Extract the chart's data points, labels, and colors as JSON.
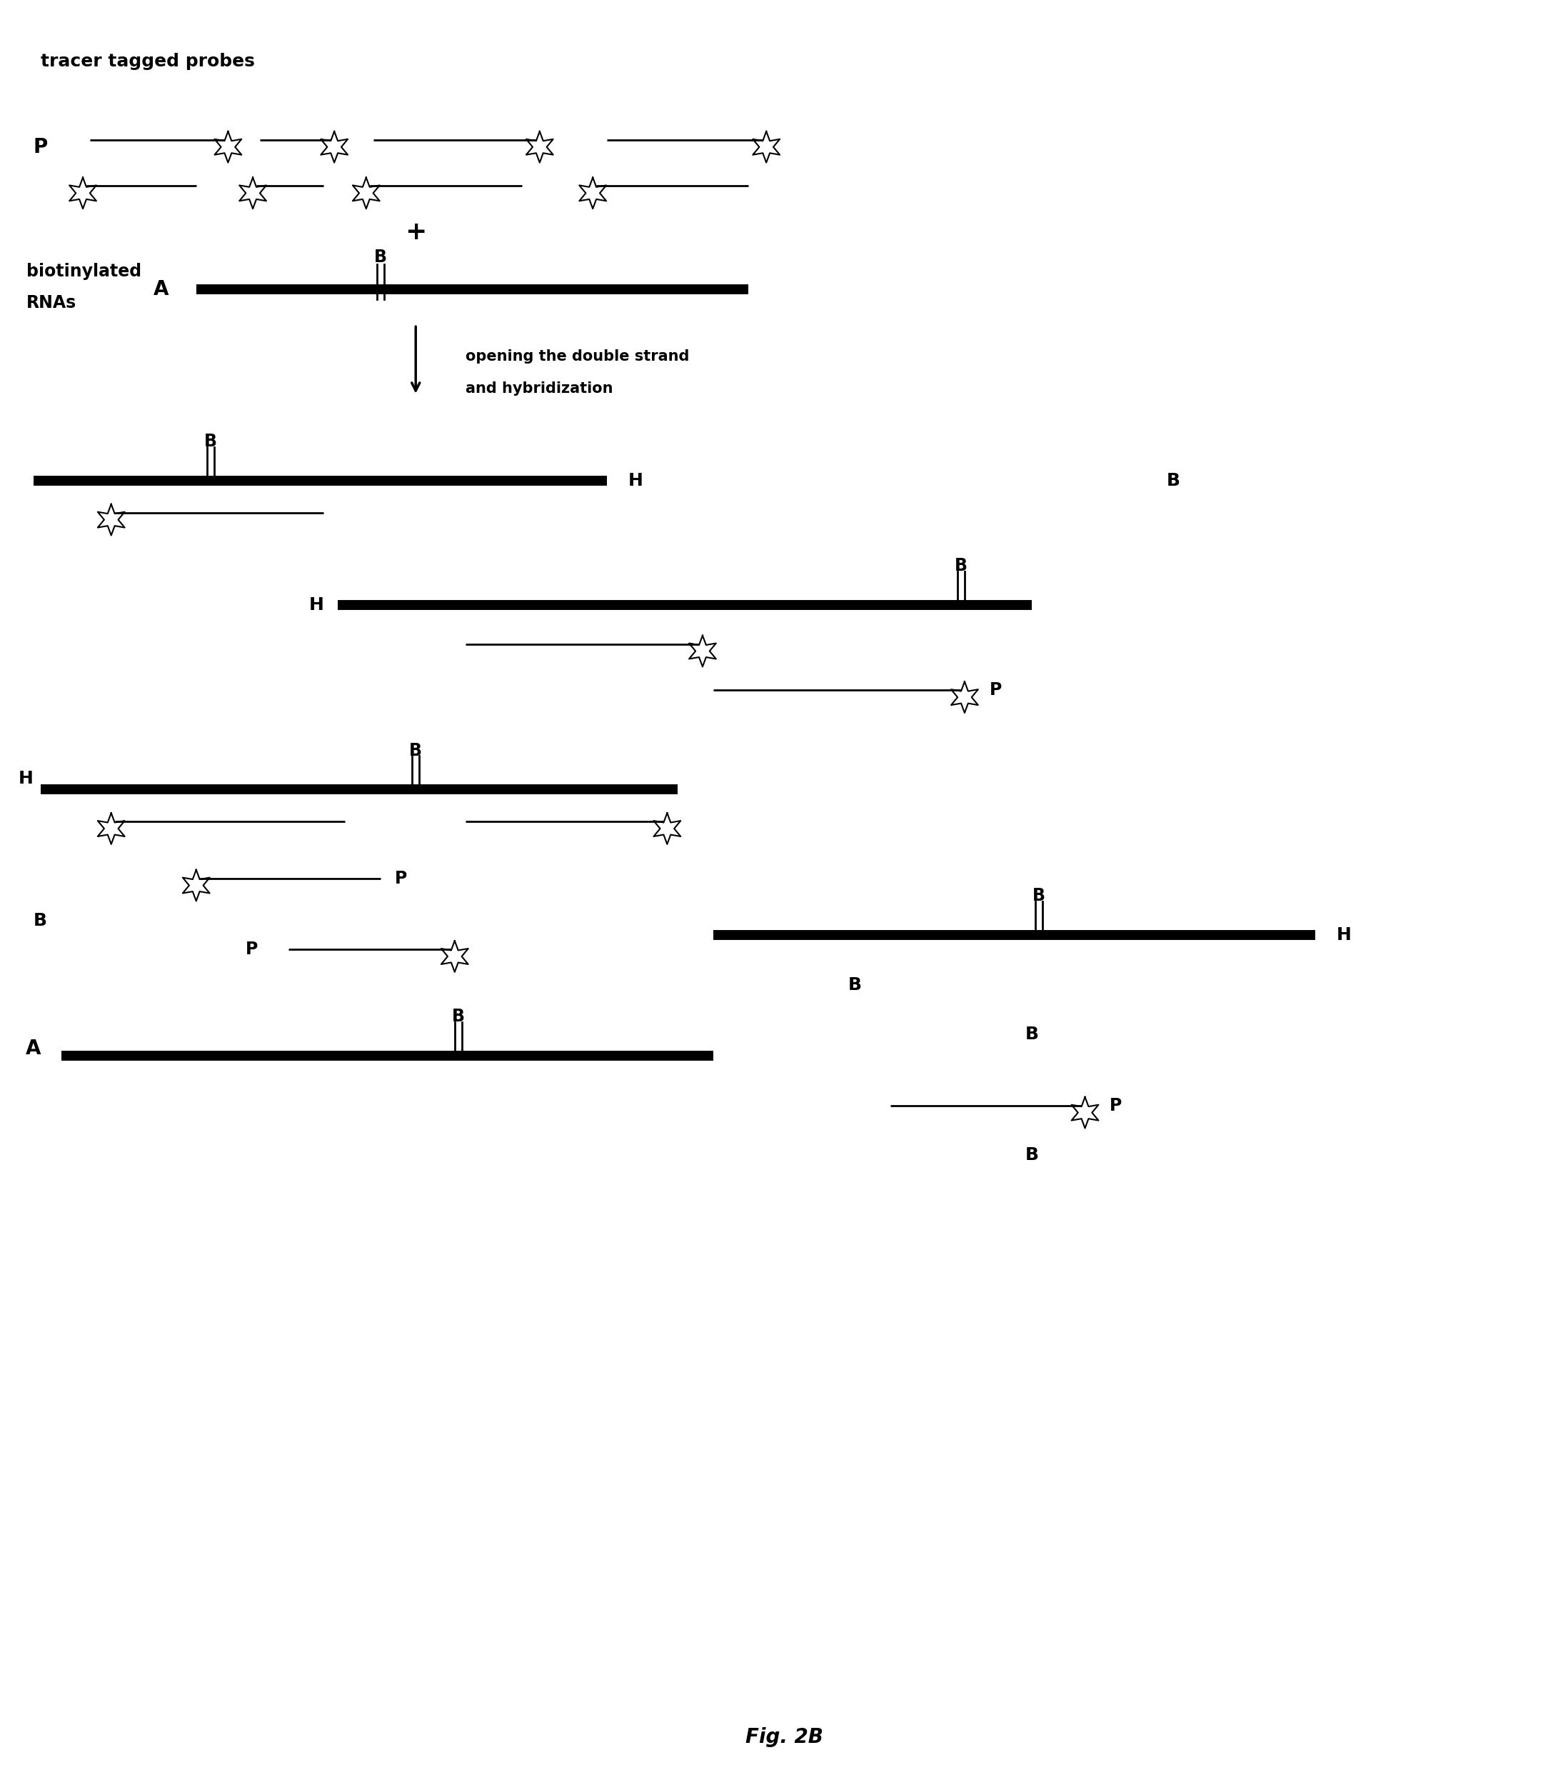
{
  "title": "Fig. 2B",
  "bg_color": "#ffffff",
  "fig_width": 21.96,
  "fig_height": 24.99,
  "sections": {
    "top_label": "tracer tagged probes",
    "biotin_label1": "biotinylated",
    "biotin_label2": "RNAs",
    "arrow_label1": "opening the double strand",
    "arrow_label2": "and hybridization"
  }
}
